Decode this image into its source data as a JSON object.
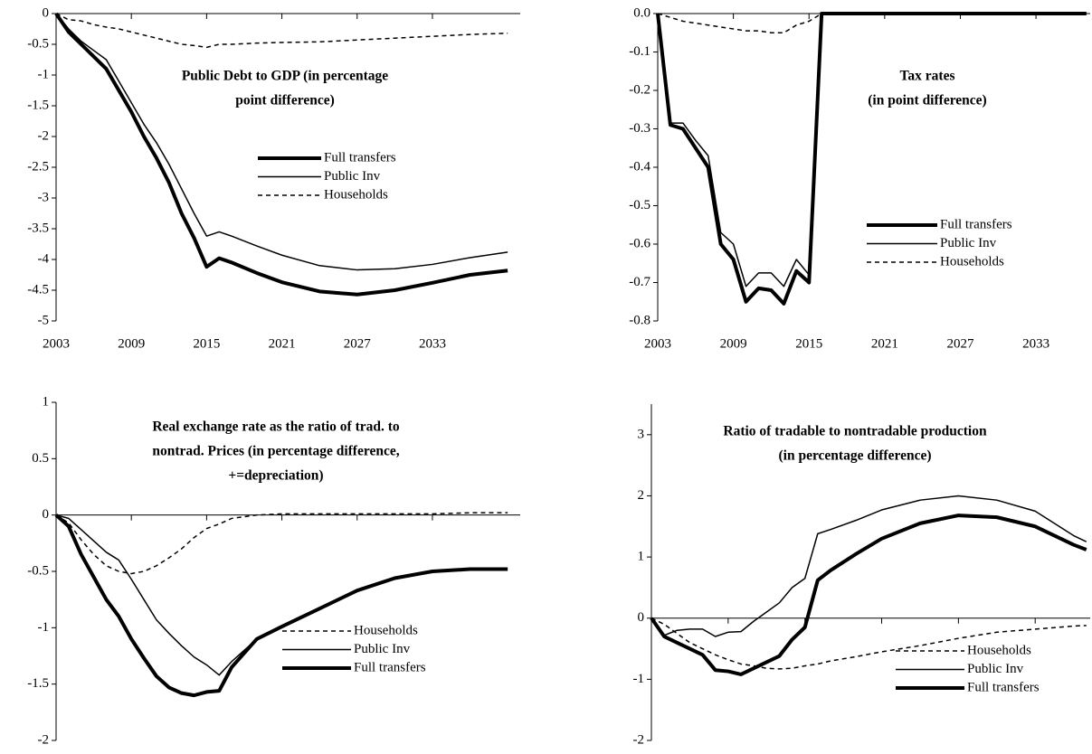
{
  "chart_data": [
    {
      "type": "line",
      "title": [
        "Public Debt to GDP  (in percentage",
        "point difference)"
      ],
      "x": [
        2003,
        2004,
        2005,
        2006,
        2007,
        2008,
        2009,
        2010,
        2011,
        2012,
        2013,
        2014,
        2015,
        2016,
        2017,
        2019,
        2021,
        2024,
        2027,
        2030,
        2033,
        2036,
        2039
      ],
      "xlim": [
        2003,
        2040
      ],
      "xticks": [
        2003,
        2009,
        2015,
        2021,
        2027,
        2033
      ],
      "ylim": [
        -5,
        0
      ],
      "yticks": [
        0,
        -0.5,
        -1,
        -1.5,
        -2,
        -2.5,
        -3,
        -3.5,
        -4,
        -4.5,
        -5
      ],
      "series": [
        {
          "name": "Full transfers",
          "color": "#000000",
          "linewidth": 4,
          "dashed": false,
          "values": [
            0,
            -0.3,
            -0.5,
            -0.7,
            -0.9,
            -1.25,
            -1.6,
            -2.0,
            -2.35,
            -2.75,
            -3.25,
            -3.65,
            -4.12,
            -3.98,
            -4.05,
            -4.22,
            -4.37,
            -4.52,
            -4.57,
            -4.5,
            -4.38,
            -4.25,
            -4.18
          ]
        },
        {
          "name": "Public Inv",
          "color": "#000000",
          "linewidth": 1.5,
          "dashed": false,
          "values": [
            0,
            -0.25,
            -0.45,
            -0.6,
            -0.75,
            -1.1,
            -1.45,
            -1.8,
            -2.1,
            -2.45,
            -2.85,
            -3.25,
            -3.62,
            -3.55,
            -3.62,
            -3.78,
            -3.93,
            -4.1,
            -4.17,
            -4.15,
            -4.08,
            -3.97,
            -3.88
          ]
        },
        {
          "name": "Households",
          "color": "#000000",
          "linewidth": 1.5,
          "dashed": true,
          "values": [
            0,
            -0.1,
            -0.12,
            -0.18,
            -0.22,
            -0.25,
            -0.3,
            -0.35,
            -0.4,
            -0.45,
            -0.5,
            -0.52,
            -0.55,
            -0.5,
            -0.5,
            -0.48,
            -0.47,
            -0.46,
            -0.43,
            -0.4,
            -0.37,
            -0.34,
            -0.32
          ]
        }
      ]
    },
    {
      "type": "line",
      "title": [
        "Tax rates",
        "(in point difference)"
      ],
      "x": [
        2003,
        2004,
        2005,
        2006,
        2007,
        2008,
        2009,
        2010,
        2011,
        2012,
        2013,
        2014,
        2015,
        2016,
        2017,
        2019,
        2021,
        2024,
        2027,
        2030,
        2033,
        2036,
        2037
      ],
      "xlim": [
        2003,
        2037.3
      ],
      "xticks": [
        2003,
        2009,
        2015,
        2021,
        2027,
        2033
      ],
      "ylim": [
        -0.8,
        0
      ],
      "yticks": [
        {
          "value": 0,
          "label": "0.0"
        },
        -0.1,
        -0.2,
        -0.3,
        -0.4,
        -0.5,
        -0.6,
        -0.7,
        -0.8
      ],
      "series": [
        {
          "name": "Full transfers",
          "color": "#000000",
          "linewidth": 4,
          "dashed": false,
          "values": [
            0,
            -0.29,
            -0.3,
            -0.35,
            -0.4,
            -0.6,
            -0.64,
            -0.75,
            -0.715,
            -0.72,
            -0.755,
            -0.67,
            -0.7,
            0,
            0,
            0,
            0,
            0,
            0,
            0,
            0,
            0,
            0
          ]
        },
        {
          "name": "Public Inv",
          "color": "#000000",
          "linewidth": 1.5,
          "dashed": false,
          "values": [
            0,
            -0.285,
            -0.285,
            -0.33,
            -0.37,
            -0.57,
            -0.6,
            -0.71,
            -0.675,
            -0.675,
            -0.71,
            -0.64,
            -0.68,
            0,
            0,
            0,
            0,
            0,
            0,
            0,
            0,
            0,
            0
          ]
        },
        {
          "name": "Households",
          "color": "#000000",
          "linewidth": 1.5,
          "dashed": true,
          "values": [
            0,
            -0.01,
            -0.02,
            -0.025,
            -0.03,
            -0.035,
            -0.04,
            -0.045,
            -0.045,
            -0.05,
            -0.05,
            -0.03,
            -0.02,
            0,
            0,
            0,
            0,
            0,
            0,
            0,
            0,
            0,
            0
          ]
        }
      ]
    },
    {
      "type": "line",
      "title": [
        "Real exchange rate as the ratio of trad. to",
        "nontrad. Prices (in percentage difference,",
        "+=depreciation)"
      ],
      "x": [
        2003,
        2004,
        2005,
        2006,
        2007,
        2008,
        2009,
        2010,
        2011,
        2012,
        2013,
        2014,
        2015,
        2016,
        2017,
        2019,
        2021,
        2024,
        2027,
        2030,
        2033,
        2036,
        2039
      ],
      "xlim": [
        2003,
        2040
      ],
      "xticks": [
        2003,
        2009,
        2015,
        2021,
        2027,
        2033
      ],
      "ylim": [
        -2,
        1
      ],
      "yticks": [
        1,
        0.5,
        0,
        -0.5,
        -1,
        -1.5,
        -2
      ],
      "series": [
        {
          "name": "Households",
          "color": "#000000",
          "linewidth": 1.5,
          "dashed": true,
          "values": [
            0,
            -0.07,
            -0.22,
            -0.35,
            -0.45,
            -0.5,
            -0.52,
            -0.5,
            -0.45,
            -0.38,
            -0.3,
            -0.2,
            -0.12,
            -0.08,
            -0.03,
            0,
            0.01,
            0.01,
            0.01,
            0.01,
            0.01,
            0.02,
            0.02
          ]
        },
        {
          "name": "Public Inv",
          "color": "#000000",
          "linewidth": 1.5,
          "dashed": false,
          "values": [
            0,
            -0.03,
            -0.13,
            -0.23,
            -0.33,
            -0.4,
            -0.57,
            -0.75,
            -0.93,
            -1.05,
            -1.16,
            -1.26,
            -1.33,
            -1.42,
            -1.3,
            -1.1,
            -0.99,
            -0.83,
            -0.67,
            -0.56,
            -0.5,
            -0.48,
            -0.48
          ]
        },
        {
          "name": "Full transfers",
          "color": "#000000",
          "linewidth": 4,
          "dashed": false,
          "values": [
            0,
            -0.1,
            -0.35,
            -0.55,
            -0.75,
            -0.9,
            -1.1,
            -1.27,
            -1.43,
            -1.53,
            -1.58,
            -1.6,
            -1.57,
            -1.56,
            -1.35,
            -1.1,
            -0.99,
            -0.83,
            -0.67,
            -0.56,
            -0.5,
            -0.48,
            -0.48
          ]
        }
      ]
    },
    {
      "type": "line",
      "title": [
        "Ratio of tradable to nontradable production",
        "(in percentage difference)"
      ],
      "x": [
        2003,
        2004,
        2005,
        2006,
        2007,
        2008,
        2009,
        2010,
        2011,
        2012,
        2013,
        2014,
        2015,
        2016,
        2017,
        2019,
        2021,
        2024,
        2027,
        2030,
        2033,
        2036,
        2037
      ],
      "xlim": [
        2003,
        2037.3
      ],
      "xticks": [
        2003,
        2009,
        2015,
        2021,
        2027,
        2033
      ],
      "ylim": [
        -2,
        3.5
      ],
      "yticks": [
        3,
        2,
        1,
        0,
        -1,
        -2
      ],
      "series": [
        {
          "name": "Households",
          "color": "#000000",
          "linewidth": 1.5,
          "dashed": true,
          "values": [
            0,
            -0.1,
            -0.25,
            -0.4,
            -0.5,
            -0.6,
            -0.68,
            -0.75,
            -0.78,
            -0.82,
            -0.83,
            -0.82,
            -0.78,
            -0.75,
            -0.7,
            -0.63,
            -0.55,
            -0.45,
            -0.33,
            -0.23,
            -0.18,
            -0.13,
            -0.12
          ]
        },
        {
          "name": "Public Inv",
          "color": "#000000",
          "linewidth": 1.5,
          "dashed": false,
          "values": [
            0,
            -0.28,
            -0.2,
            -0.18,
            -0.18,
            -0.3,
            -0.23,
            -0.22,
            -0.05,
            0.1,
            0.25,
            0.5,
            0.65,
            1.38,
            1.45,
            1.6,
            1.77,
            1.93,
            2.0,
            1.93,
            1.75,
            1.35,
            1.25
          ]
        },
        {
          "name": "Full transfers",
          "color": "#000000",
          "linewidth": 4,
          "dashed": false,
          "values": [
            0,
            -0.3,
            -0.4,
            -0.5,
            -0.6,
            -0.85,
            -0.87,
            -0.92,
            -0.82,
            -0.72,
            -0.62,
            -0.35,
            -0.15,
            0.62,
            0.78,
            1.05,
            1.3,
            1.55,
            1.68,
            1.65,
            1.5,
            1.2,
            1.12
          ]
        }
      ]
    }
  ]
}
